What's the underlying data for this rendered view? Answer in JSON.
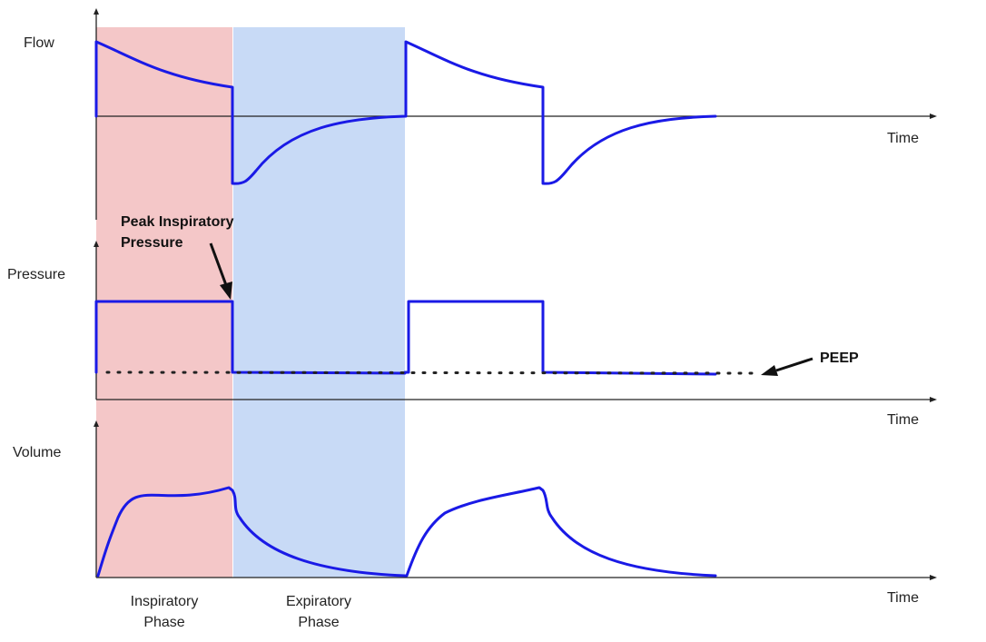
{
  "panels": {
    "flow": {
      "label": "Flow",
      "axis_label": "Time"
    },
    "pressure": {
      "label": "Pressure",
      "axis_label": "Time"
    },
    "volume": {
      "label": "Volume",
      "axis_label": "Time"
    }
  },
  "annotations": {
    "pip_line1": "Peak Inspiratory",
    "pip_line2": "Pressure",
    "peep": "PEEP"
  },
  "phases": {
    "inspiratory_line1": "Inspiratory",
    "inspiratory_line2": "Phase",
    "expiratory_line1": "Expiratory",
    "expiratory_line2": "Phase"
  },
  "colors": {
    "inspiratory_phase": "#f4c7c8",
    "expiratory_phase": "#c8daf6",
    "waveform": "#1a1ae6",
    "axis": "#222222"
  }
}
